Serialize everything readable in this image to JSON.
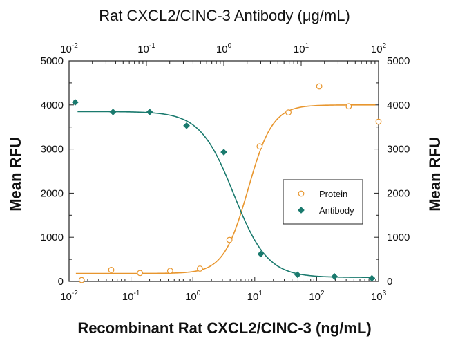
{
  "chart_data": {
    "type": "scatter",
    "title": "Rat CXCL2/CINC-3 Antibody (μg/mL)",
    "xlabel": "Recombinant Rat CXCL2/CINC-3 (ng/mL)",
    "ylabel": "Mean RFU",
    "ylabel_right": "Mean RFU",
    "x_scale": "log",
    "xlim": [
      0.01,
      1000
    ],
    "x_ticks": [
      {
        "base": "10",
        "exp": "-2"
      },
      {
        "base": "10",
        "exp": "-1"
      },
      {
        "base": "10",
        "exp": "0"
      },
      {
        "base": "10",
        "exp": "1"
      },
      {
        "base": "10",
        "exp": "2"
      },
      {
        "base": "10",
        "exp": "3"
      }
    ],
    "top_x_scale": "log",
    "top_xlim": [
      0.01,
      100
    ],
    "top_x_ticks": [
      {
        "base": "10",
        "exp": "-2"
      },
      {
        "base": "10",
        "exp": "-1"
      },
      {
        "base": "10",
        "exp": "0"
      },
      {
        "base": "10",
        "exp": "1"
      },
      {
        "base": "10",
        "exp": "2"
      }
    ],
    "ylim": [
      0,
      5000
    ],
    "y_ticks": [
      "0",
      "1000",
      "2000",
      "3000",
      "4000",
      "5000"
    ],
    "legend_position": "center-right",
    "series": [
      {
        "name": "Protein",
        "axis": "bottom",
        "color": "#e8962e",
        "marker": "circle-open",
        "x": [
          0.016,
          0.048,
          0.14,
          0.43,
          1.3,
          3.9,
          12,
          35,
          110,
          330,
          1000
        ],
        "y": [
          30,
          260,
          190,
          240,
          290,
          940,
          3060,
          3830,
          4420,
          3970,
          3620
        ],
        "fit": {
          "bottom": 180,
          "top": 4000,
          "ec50": 7.8,
          "hill": 2.2
        }
      },
      {
        "name": "Antibody",
        "axis": "top",
        "color": "#1a7a6e",
        "marker": "diamond-filled",
        "x": [
          0.012,
          0.037,
          0.11,
          0.33,
          1.0,
          3.0,
          9.0,
          27,
          82
        ],
        "y": [
          4060,
          3840,
          3840,
          3530,
          2930,
          620,
          150,
          110,
          70
        ],
        "fit": {
          "bottom": 90,
          "top": 3850,
          "ec50": 1.35,
          "hill": 2.0
        }
      }
    ]
  }
}
